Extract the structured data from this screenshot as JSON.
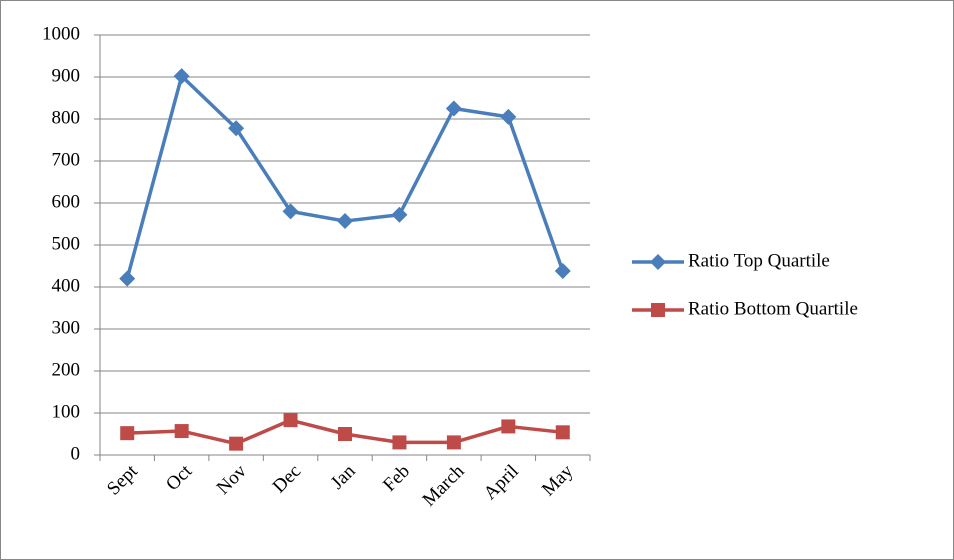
{
  "chart_data": {
    "type": "line",
    "categories": [
      "Sept",
      "Oct",
      "Nov",
      "Dec",
      "Jan",
      "Feb",
      "March",
      "April",
      "May"
    ],
    "series": [
      {
        "name": "Ratio Top Quartile",
        "color": "#4a7ebb",
        "marker": "diamond",
        "values": [
          420,
          902,
          778,
          580,
          557,
          572,
          825,
          805,
          438
        ]
      },
      {
        "name": "Ratio Bottom Quartile",
        "color": "#be4b48",
        "marker": "square",
        "values": [
          52,
          57,
          27,
          83,
          50,
          30,
          30,
          68,
          54
        ]
      }
    ],
    "ylim": [
      0,
      1000
    ],
    "yticks": [
      0,
      100,
      200,
      300,
      400,
      500,
      600,
      700,
      800,
      900,
      1000
    ],
    "grid": true,
    "legend": "right"
  }
}
